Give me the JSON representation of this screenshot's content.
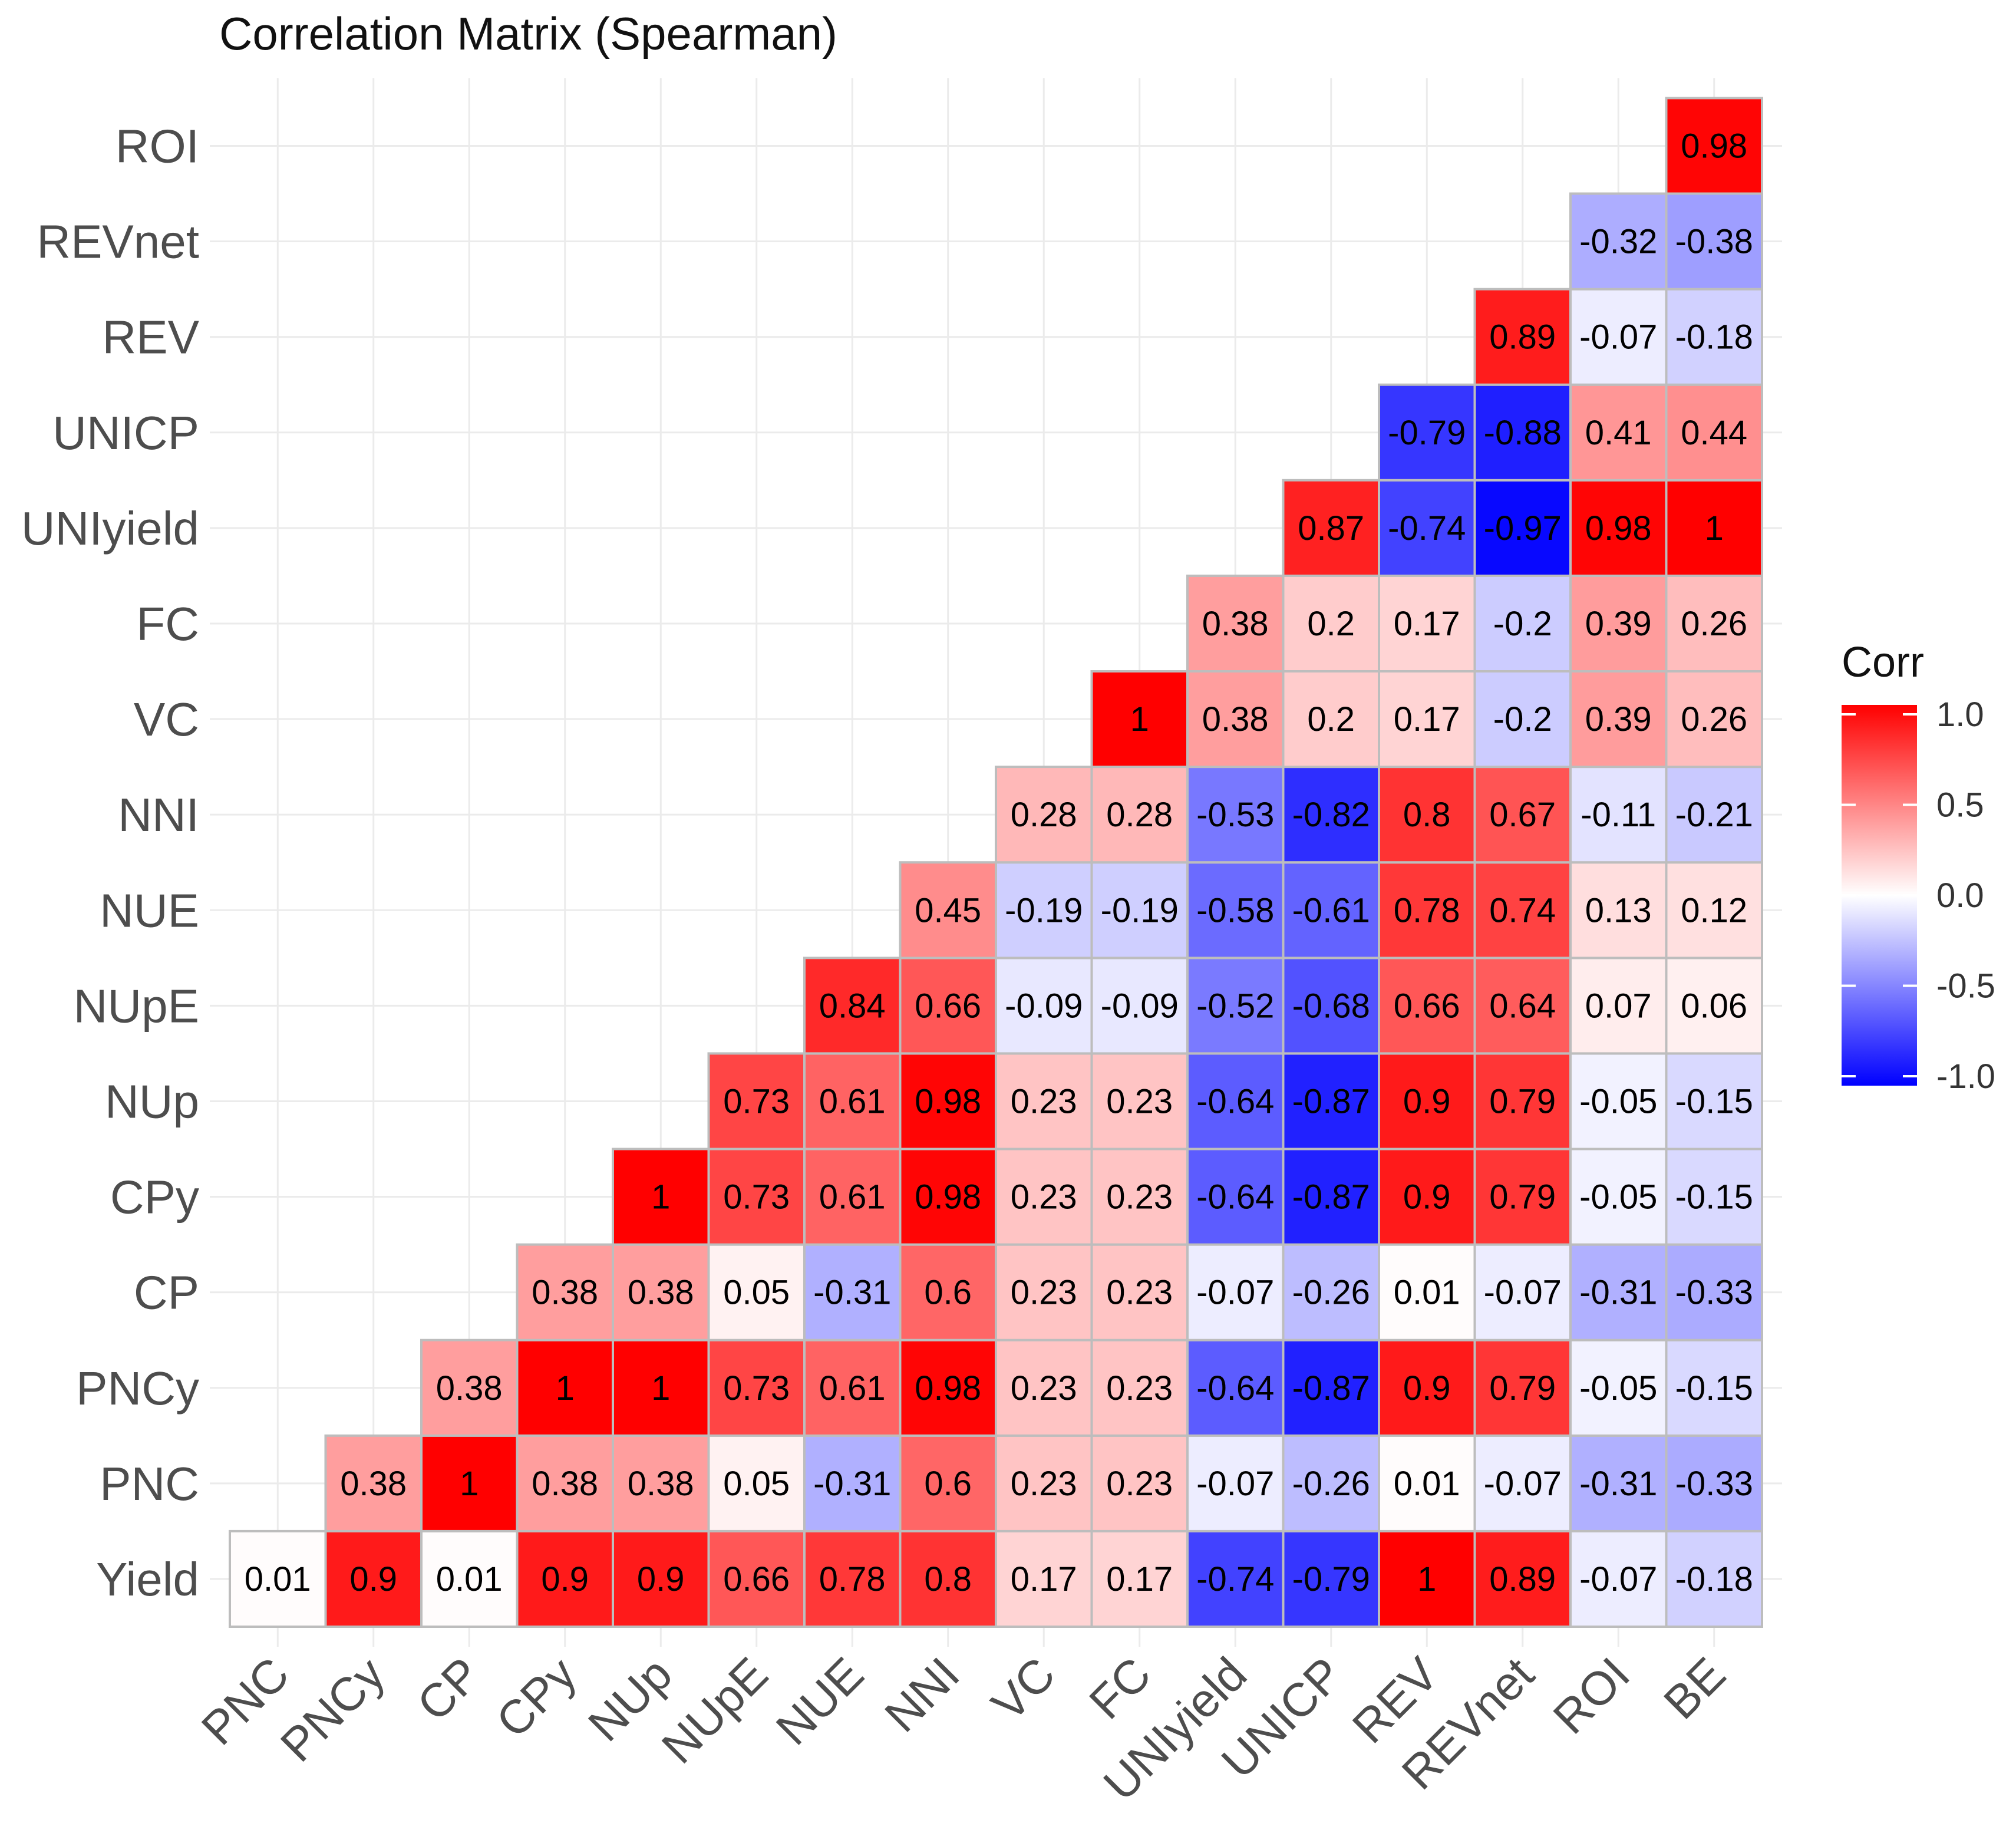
{
  "chart_data": {
    "type": "heatmap",
    "title": "Correlation Matrix (Spearman)",
    "xlabel": "",
    "ylabel": "",
    "x_categories": [
      "PNC",
      "PNCy",
      "CP",
      "CPy",
      "NUp",
      "NUpE",
      "NUE",
      "NNI",
      "VC",
      "FC",
      "UNIyield",
      "UNICP",
      "REV",
      "REVnet",
      "ROI",
      "BE"
    ],
    "y_categories": [
      "Yield",
      "PNC",
      "PNCy",
      "CP",
      "CPy",
      "NUp",
      "NUpE",
      "NUE",
      "NNI",
      "VC",
      "FC",
      "UNIyield",
      "UNICP",
      "REV",
      "REVnet",
      "ROI"
    ],
    "rows": [
      {
        "label": "Yield",
        "values": [
          "0.01",
          "0.9",
          "0.01",
          "0.9",
          "0.9",
          "0.66",
          "0.78",
          "0.8",
          "0.17",
          "0.17",
          "-0.74",
          "-0.79",
          "1",
          "0.89",
          "-0.07",
          "-0.18"
        ]
      },
      {
        "label": "PNC",
        "values": [
          "0.38",
          "1",
          "0.38",
          "0.38",
          "0.05",
          "-0.31",
          "0.6",
          "0.23",
          "0.23",
          "-0.07",
          "-0.26",
          "0.01",
          "-0.07",
          "-0.31",
          "-0.33"
        ]
      },
      {
        "label": "PNCy",
        "values": [
          "0.38",
          "1",
          "1",
          "0.73",
          "0.61",
          "0.98",
          "0.23",
          "0.23",
          "-0.64",
          "-0.87",
          "0.9",
          "0.79",
          "-0.05",
          "-0.15"
        ]
      },
      {
        "label": "CP",
        "values": [
          "0.38",
          "0.38",
          "0.05",
          "-0.31",
          "0.6",
          "0.23",
          "0.23",
          "-0.07",
          "-0.26",
          "0.01",
          "-0.07",
          "-0.31",
          "-0.33"
        ]
      },
      {
        "label": "CPy",
        "values": [
          "1",
          "0.73",
          "0.61",
          "0.98",
          "0.23",
          "0.23",
          "-0.64",
          "-0.87",
          "0.9",
          "0.79",
          "-0.05",
          "-0.15"
        ]
      },
      {
        "label": "NUp",
        "values": [
          "0.73",
          "0.61",
          "0.98",
          "0.23",
          "0.23",
          "-0.64",
          "-0.87",
          "0.9",
          "0.79",
          "-0.05",
          "-0.15"
        ]
      },
      {
        "label": "NUpE",
        "values": [
          "0.84",
          "0.66",
          "-0.09",
          "-0.09",
          "-0.52",
          "-0.68",
          "0.66",
          "0.64",
          "0.07",
          "0.06"
        ]
      },
      {
        "label": "NUE",
        "values": [
          "0.45",
          "-0.19",
          "-0.19",
          "-0.58",
          "-0.61",
          "0.78",
          "0.74",
          "0.13",
          "0.12"
        ]
      },
      {
        "label": "NNI",
        "values": [
          "0.28",
          "0.28",
          "-0.53",
          "-0.82",
          "0.8",
          "0.67",
          "-0.11",
          "-0.21"
        ]
      },
      {
        "label": "VC",
        "values": [
          "1",
          "0.38",
          "0.2",
          "0.17",
          "-0.2",
          "0.39",
          "0.26"
        ]
      },
      {
        "label": "FC",
        "values": [
          "0.38",
          "0.2",
          "0.17",
          "-0.2",
          "0.39",
          "0.26"
        ]
      },
      {
        "label": "UNIyield",
        "values": [
          "0.87",
          "-0.74",
          "-0.97",
          "0.98",
          "1"
        ]
      },
      {
        "label": "UNICP",
        "values": [
          "-0.79",
          "-0.88",
          "0.41",
          "0.44"
        ]
      },
      {
        "label": "REV",
        "values": [
          "0.89",
          "-0.07",
          "-0.18"
        ]
      },
      {
        "label": "REVnet",
        "values": [
          "-0.32",
          "-0.38"
        ]
      },
      {
        "label": "ROI",
        "values": [
          "0.98"
        ]
      }
    ],
    "color_scale": {
      "low": "#0000ff",
      "mid": "#ffffff",
      "high": "#ff0000",
      "range": [
        -1,
        1
      ]
    },
    "legend": {
      "title": "Corr",
      "position": "right",
      "ticks": [
        {
          "value": 1.0,
          "label": "1.0"
        },
        {
          "value": 0.5,
          "label": "0.5"
        },
        {
          "value": 0.0,
          "label": "0.0"
        },
        {
          "value": -0.5,
          "label": "-0.5"
        },
        {
          "value": -1.0,
          "label": "-1.0"
        }
      ]
    },
    "grid": true
  }
}
